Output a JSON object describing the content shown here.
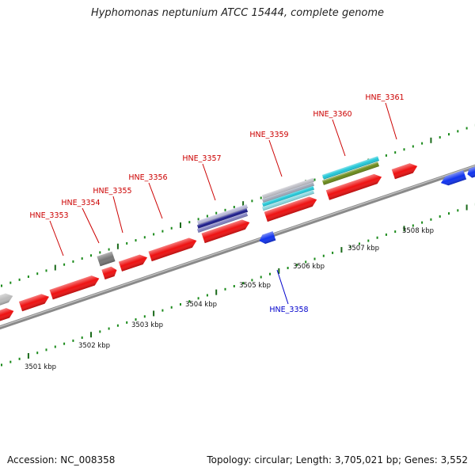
{
  "header": {
    "title": "Hyphomonas neptunium ATCC 15444, complete genome"
  },
  "footer": {
    "accession": "Accession: NC_008358",
    "topology": "Topology: circular; Length: 3,705,021 bp; Genes: 3,552"
  },
  "colors": {
    "forward_gene": "#ee1111",
    "reverse_gene": "#1133ee",
    "gene_label_forward": "#cc0000",
    "gene_label_reverse": "#0000cc",
    "backbone": "#8a8a8a",
    "tick_minor": "#1a8a1a",
    "tick_major": "#1a6a1a",
    "cyan_feature": "#22c8d8",
    "olive_feature": "#6a8a1a",
    "navy_feature": "#1a1a8a",
    "gray_feature": "#777777"
  },
  "map": {
    "forward_labels": [
      "HNE_3353",
      "HNE_3354",
      "HNE_3355",
      "HNE_3356",
      "HNE_3357",
      "HNE_3359",
      "HNE_3360",
      "HNE_3361"
    ],
    "reverse_labels": [
      "HNE_3358"
    ],
    "tick_labels": [
      "3501 kbp",
      "3502 kbp",
      "3503 kbp",
      "3504 kbp",
      "3505 kbp",
      "3506 kbp",
      "3507 kbp",
      "3508 kbp"
    ]
  }
}
